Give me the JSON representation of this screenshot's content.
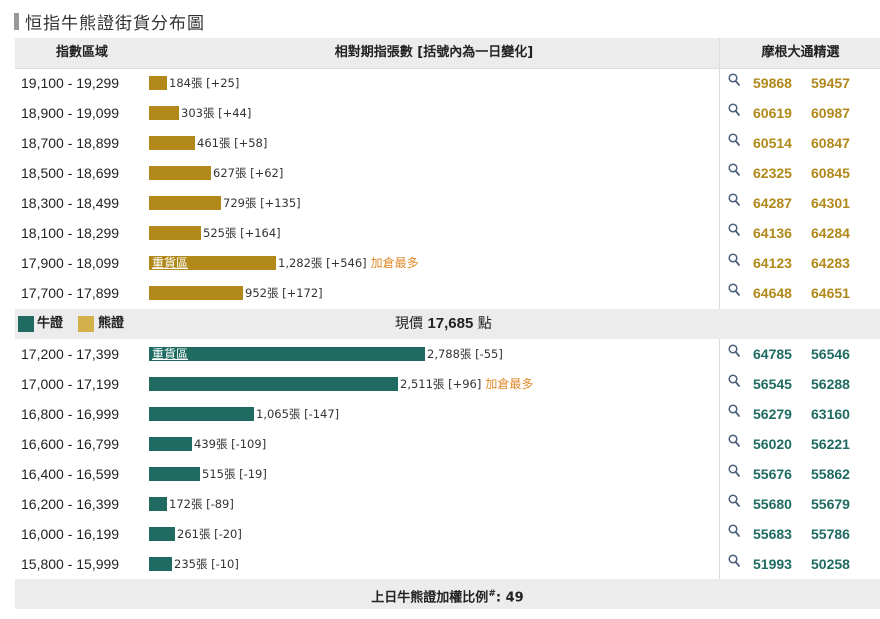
{
  "title": "恒指牛熊證街貨分布圖",
  "header": {
    "col1": "指數區域",
    "col2": "相對期指張數 [括號內為一日變化]",
    "col3": "摩根大通精選"
  },
  "colors": {
    "bear": "#b0891a",
    "bull": "#1f6b62",
    "most": "#e08a2a",
    "header_bg": "#ececec"
  },
  "bear_rows": [
    {
      "range": "19,100 - 19,299",
      "qty": 184,
      "label": "184張 [+25]",
      "tag": "",
      "most": "",
      "code1": "59868",
      "code2": "59457"
    },
    {
      "range": "18,900 - 19,099",
      "qty": 303,
      "label": "303張 [+44]",
      "tag": "",
      "most": "",
      "code1": "60619",
      "code2": "60987"
    },
    {
      "range": "18,700 - 18,899",
      "qty": 461,
      "label": "461張 [+58]",
      "tag": "",
      "most": "",
      "code1": "60514",
      "code2": "60847"
    },
    {
      "range": "18,500 - 18,699",
      "qty": 627,
      "label": "627張 [+62]",
      "tag": "",
      "most": "",
      "code1": "62325",
      "code2": "60845"
    },
    {
      "range": "18,300 - 18,499",
      "qty": 729,
      "label": "729張 [+135]",
      "tag": "",
      "most": "",
      "code1": "64287",
      "code2": "64301"
    },
    {
      "range": "18,100 - 18,299",
      "qty": 525,
      "label": "525張 [+164]",
      "tag": "",
      "most": "",
      "code1": "64136",
      "code2": "64284"
    },
    {
      "range": "17,900 - 18,099",
      "qty": 1282,
      "label": "1,282張 [+546]",
      "tag": "重貨區",
      "most": "加倉最多",
      "code1": "64123",
      "code2": "64283"
    },
    {
      "range": "17,700 - 17,899",
      "qty": 952,
      "label": "952張 [+172]",
      "tag": "",
      "most": "",
      "code1": "64648",
      "code2": "64651"
    }
  ],
  "middle": {
    "bull_label": "牛證",
    "bear_label": "熊證",
    "price_prefix": "現價",
    "price": "17,685",
    "price_suffix": "點"
  },
  "bull_rows": [
    {
      "range": "17,200 - 17,399",
      "qty": 2788,
      "label": "2,788張 [-55]",
      "tag": "重貨區",
      "most": "",
      "code1": "64785",
      "code2": "56546"
    },
    {
      "range": "17,000 - 17,199",
      "qty": 2511,
      "label": "2,511張 [+96]",
      "tag": "",
      "most": "加倉最多",
      "code1": "56545",
      "code2": "56288"
    },
    {
      "range": "16,800 - 16,999",
      "qty": 1065,
      "label": "1,065張 [-147]",
      "tag": "",
      "most": "",
      "code1": "56279",
      "code2": "63160"
    },
    {
      "range": "16,600 - 16,799",
      "qty": 439,
      "label": "439張 [-109]",
      "tag": "",
      "most": "",
      "code1": "56020",
      "code2": "56221"
    },
    {
      "range": "16,400 - 16,599",
      "qty": 515,
      "label": "515張 [-19]",
      "tag": "",
      "most": "",
      "code1": "55676",
      "code2": "55862"
    },
    {
      "range": "16,200 - 16,399",
      "qty": 172,
      "label": "172張 [-89]",
      "tag": "",
      "most": "",
      "code1": "55680",
      "code2": "55679"
    },
    {
      "range": "16,000 - 16,199",
      "qty": 261,
      "label": "261張 [-20]",
      "tag": "",
      "most": "",
      "code1": "55683",
      "code2": "55786"
    },
    {
      "range": "15,800 - 15,999",
      "qty": 235,
      "label": "235張 [-10]",
      "tag": "",
      "most": "",
      "code1": "51993",
      "code2": "50258"
    }
  ],
  "footer": {
    "text": "上日牛熊證加權比例",
    "sup": "#",
    "value": ": 49"
  }
}
